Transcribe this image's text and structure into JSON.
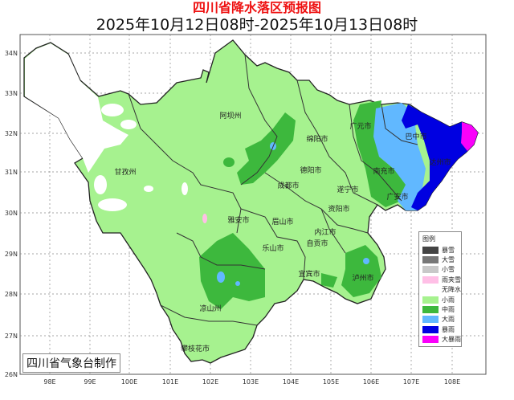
{
  "header": {
    "title": "四川省降水落区预报图",
    "period": "2025年10月12日08时-2025年10月13日08时"
  },
  "axes": {
    "lat_labels": [
      "34N",
      "33N",
      "32N",
      "31N",
      "30N",
      "29N",
      "28N",
      "27N",
      "26N"
    ],
    "lon_labels": [
      "98E",
      "99E",
      "100E",
      "101E",
      "102E",
      "103E",
      "104E",
      "105E",
      "106E",
      "107E",
      "108E"
    ]
  },
  "cities": [
    {
      "name": "阿坝州"
    },
    {
      "name": "绵阳市"
    },
    {
      "name": "广元市"
    },
    {
      "name": "巴中市"
    },
    {
      "name": "达州市"
    },
    {
      "name": "南充市"
    },
    {
      "name": "广安市"
    },
    {
      "name": "德阳市"
    },
    {
      "name": "成都市"
    },
    {
      "name": "遂宁市"
    },
    {
      "name": "资阳市"
    },
    {
      "name": "雅安市"
    },
    {
      "name": "眉山市"
    },
    {
      "name": "乐山市"
    },
    {
      "name": "内江市"
    },
    {
      "name": "自贡市"
    },
    {
      "name": "宜宾市"
    },
    {
      "name": "泸州市"
    },
    {
      "name": "凉山州"
    },
    {
      "name": "攀枝花市"
    },
    {
      "name": "甘孜州"
    }
  ],
  "legend": {
    "title": "图例",
    "items": [
      {
        "label": "暴雪",
        "color": "#444444"
      },
      {
        "label": "大雪",
        "color": "#777777"
      },
      {
        "label": "小雪",
        "color": "#c8c8c8"
      },
      {
        "label": "雨夹雪",
        "color": "#ffbfe6"
      },
      {
        "label": "无降水",
        "color": "#ffffff"
      },
      {
        "label": "小雨",
        "color": "#a6f28f"
      },
      {
        "label": "中雨",
        "color": "#3db83d"
      },
      {
        "label": "大雨",
        "color": "#61b8ff"
      },
      {
        "label": "暴雨",
        "color": "#0000e1"
      },
      {
        "label": "大暴雨",
        "color": "#fa00fa"
      }
    ]
  },
  "credit": "四川省气象台制作"
}
